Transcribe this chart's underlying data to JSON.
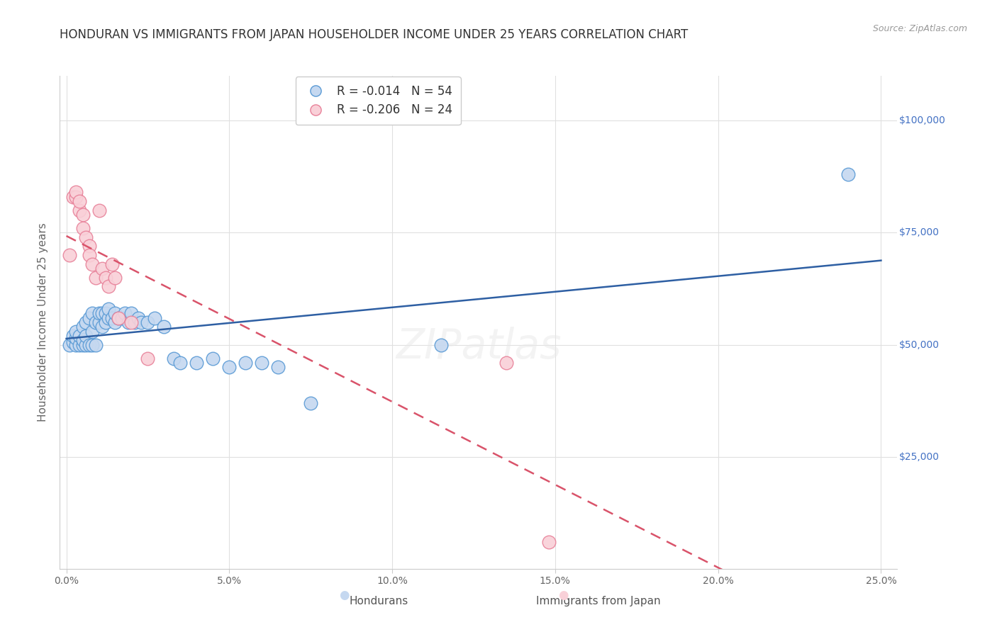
{
  "title": "HONDURAN VS IMMIGRANTS FROM JAPAN HOUSEHOLDER INCOME UNDER 25 YEARS CORRELATION CHART",
  "source": "Source: ZipAtlas.com",
  "ylabel": "Householder Income Under 25 years",
  "xlabel_ticks": [
    "0.0%",
    "5.0%",
    "10.0%",
    "15.0%",
    "20.0%",
    "25.0%"
  ],
  "xlabel_vals": [
    0.0,
    0.05,
    0.1,
    0.15,
    0.2,
    0.25
  ],
  "ylim": [
    0,
    110000
  ],
  "xlim": [
    -0.002,
    0.255
  ],
  "yticks": [
    0,
    25000,
    50000,
    75000,
    100000
  ],
  "background_color": "#ffffff",
  "grid_color": "#e0e0e0",
  "hondurans_color": "#c5d8f0",
  "japan_color": "#f9d0d8",
  "hondurans_edge": "#5b9bd5",
  "japan_edge": "#e8829a",
  "line_blue": "#2e5fa3",
  "line_pink": "#d9536a",
  "legend_r_blue": "-0.014",
  "legend_n_blue": "54",
  "legend_r_pink": "-0.206",
  "legend_n_pink": "24",
  "title_fontsize": 12,
  "axis_label_fontsize": 11,
  "tick_fontsize": 10,
  "legend_fontsize": 12,
  "hondurans_x": [
    0.001,
    0.002,
    0.002,
    0.003,
    0.003,
    0.003,
    0.004,
    0.004,
    0.005,
    0.005,
    0.005,
    0.006,
    0.006,
    0.006,
    0.007,
    0.007,
    0.008,
    0.008,
    0.008,
    0.009,
    0.009,
    0.01,
    0.01,
    0.011,
    0.011,
    0.012,
    0.012,
    0.013,
    0.013,
    0.014,
    0.015,
    0.015,
    0.016,
    0.017,
    0.018,
    0.019,
    0.02,
    0.021,
    0.022,
    0.023,
    0.025,
    0.027,
    0.03,
    0.033,
    0.035,
    0.04,
    0.045,
    0.05,
    0.055,
    0.06,
    0.065,
    0.075,
    0.115,
    0.24
  ],
  "hondurans_y": [
    50000,
    50500,
    52000,
    50000,
    51500,
    53000,
    50000,
    52000,
    50000,
    51000,
    54000,
    50000,
    52000,
    55000,
    50000,
    56000,
    50000,
    53000,
    57000,
    50000,
    55000,
    55000,
    57000,
    54000,
    57000,
    55000,
    57000,
    56000,
    58000,
    56000,
    55000,
    57000,
    56000,
    56000,
    57000,
    55000,
    57000,
    55000,
    56000,
    55000,
    55000,
    56000,
    54000,
    47000,
    46000,
    46000,
    47000,
    45000,
    46000,
    46000,
    45000,
    37000,
    50000,
    88000
  ],
  "japan_x": [
    0.001,
    0.002,
    0.003,
    0.003,
    0.004,
    0.004,
    0.005,
    0.005,
    0.006,
    0.007,
    0.007,
    0.008,
    0.009,
    0.01,
    0.011,
    0.012,
    0.013,
    0.014,
    0.015,
    0.016,
    0.02,
    0.025,
    0.135,
    0.148
  ],
  "japan_y": [
    70000,
    83000,
    83000,
    84000,
    80000,
    82000,
    79000,
    76000,
    74000,
    72000,
    70000,
    68000,
    65000,
    80000,
    67000,
    65000,
    63000,
    68000,
    65000,
    56000,
    55000,
    47000,
    46000,
    6000
  ]
}
